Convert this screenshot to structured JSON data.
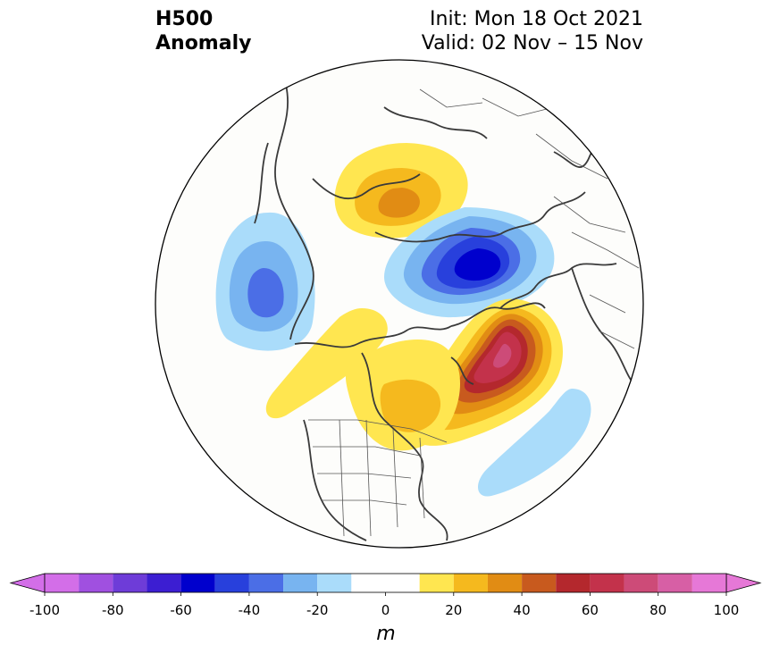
{
  "title": {
    "left_line1": "H500",
    "left_line2": "Anomaly",
    "right_line1": "Init: Mon 18 Oct 2021",
    "right_line2": "Valid: 02 Nov – 15 Nov"
  },
  "map": {
    "projection": "north-polar-stereographic",
    "features": [
      "coastlines",
      "country-borders",
      "state-borders"
    ],
    "anomaly_centers": [
      {
        "name": "negative-anomaly-north-pacific",
        "sign": "negative",
        "peak_m": -40
      },
      {
        "name": "positive-anomaly-siberia",
        "sign": "positive",
        "peak_m": 40
      },
      {
        "name": "negative-anomaly-scandinavia-arctic",
        "sign": "negative",
        "peak_m": -70
      },
      {
        "name": "positive-anomaly-north-atlantic",
        "sign": "positive",
        "peak_m": 80
      },
      {
        "name": "positive-anomaly-western-canada",
        "sign": "positive",
        "peak_m": 20
      },
      {
        "name": "positive-anomaly-central-canada",
        "sign": "positive",
        "peak_m": 40
      },
      {
        "name": "negative-anomaly-subtropical-atlantic",
        "sign": "negative",
        "peak_m": -20
      }
    ]
  },
  "colorbar": {
    "unit": "m",
    "ticks": [
      "-100",
      "-80",
      "-60",
      "-40",
      "-20",
      "0",
      "20",
      "40",
      "60",
      "80",
      "100"
    ],
    "levels": [
      -100,
      -90,
      -80,
      -70,
      -60,
      -50,
      -40,
      -30,
      -20,
      -10,
      10,
      20,
      30,
      40,
      50,
      60,
      70,
      80,
      90,
      100
    ],
    "colors": [
      "#d36ee8",
      "#a050e0",
      "#6e3cd8",
      "#3c1ed2",
      "#0000cd",
      "#2840dc",
      "#4b6ee6",
      "#78b4f0",
      "#aadcfa",
      "#ffffff",
      "#ffe650",
      "#f5b91e",
      "#e18c14",
      "#c85a1e",
      "#b4282d",
      "#c3324b",
      "#cd4b78",
      "#d75fa5",
      "#e678d7"
    ],
    "extend_low_color": "#d36ee8",
    "extend_high_color": "#e678d7"
  }
}
